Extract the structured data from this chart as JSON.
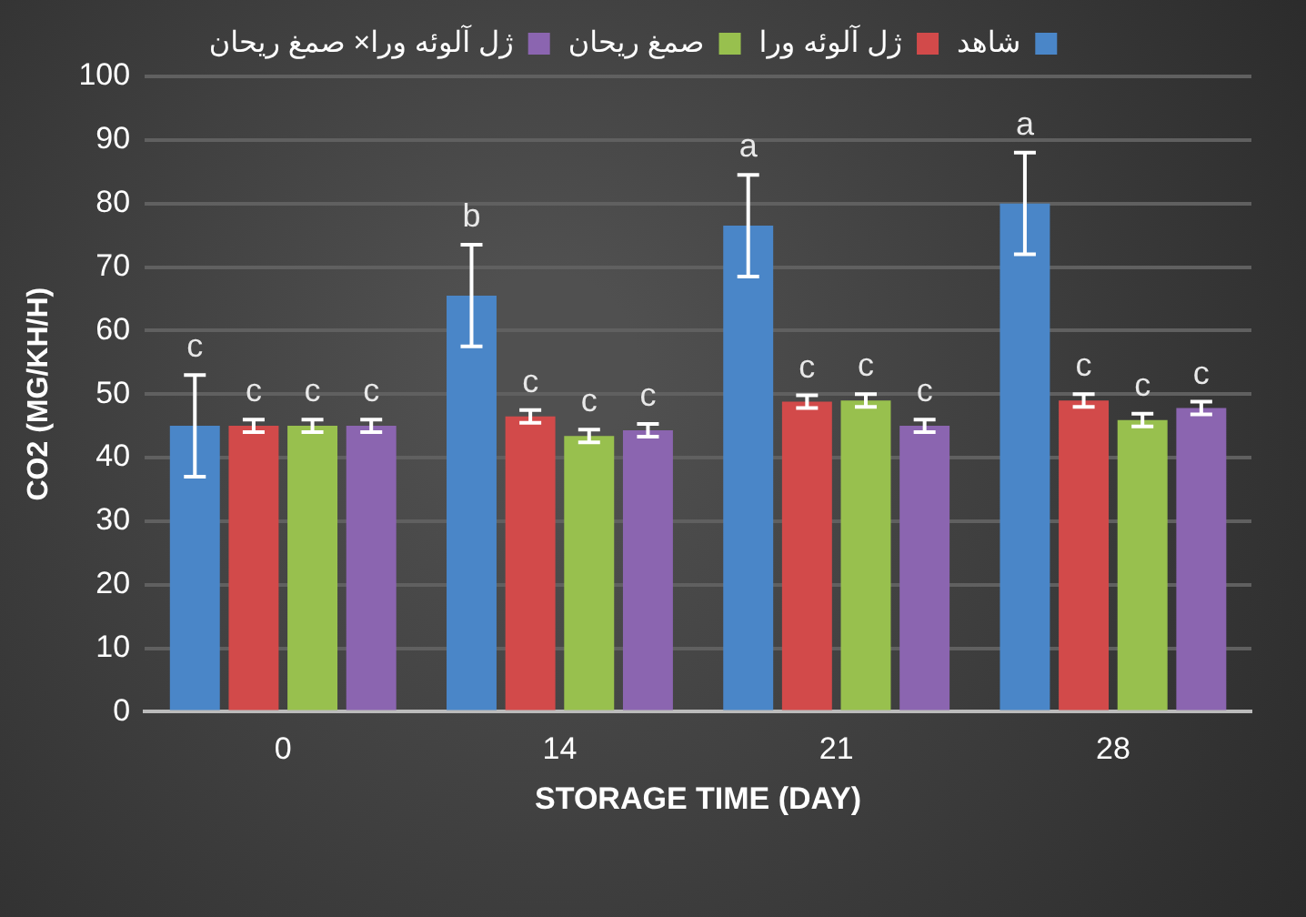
{
  "chart_data": {
    "type": "bar",
    "xlabel": "STORAGE TIME (DAY)",
    "ylabel": "CO2 (MG/KH/H)",
    "categories": [
      "0",
      "14",
      "21",
      "28"
    ],
    "ylim": [
      0,
      100
    ],
    "yticks": [
      0,
      10,
      20,
      30,
      40,
      50,
      60,
      70,
      80,
      90,
      100
    ],
    "grid": "y",
    "legend": "top",
    "series": [
      {
        "name": "شاهد",
        "color": "#4a86c8",
        "values": [
          45,
          65.5,
          76.5,
          80
        ],
        "errors": [
          8,
          8,
          8,
          8
        ]
      },
      {
        "name": "ژل آلوئه ورا",
        "color": "#d24a4a",
        "values": [
          45,
          46.5,
          48.8,
          49
        ],
        "errors": [
          1,
          1,
          1,
          1
        ]
      },
      {
        "name": "صمغ ریحان",
        "color": "#98c04e",
        "values": [
          45,
          43.4,
          49,
          45.9
        ],
        "errors": [
          1,
          1,
          1,
          1
        ]
      },
      {
        "name": "ژل آلوئه ورا× صمغ ریحان",
        "color": "#8b65b0",
        "values": [
          45,
          44.3,
          45,
          47.8
        ],
        "errors": [
          1,
          1,
          1,
          1
        ]
      }
    ],
    "annotations": [
      "c",
      "c",
      "c",
      "c",
      "b",
      "c",
      "c",
      "c",
      "a",
      "c",
      "c",
      "c",
      "a",
      "c",
      "c",
      "c"
    ]
  }
}
